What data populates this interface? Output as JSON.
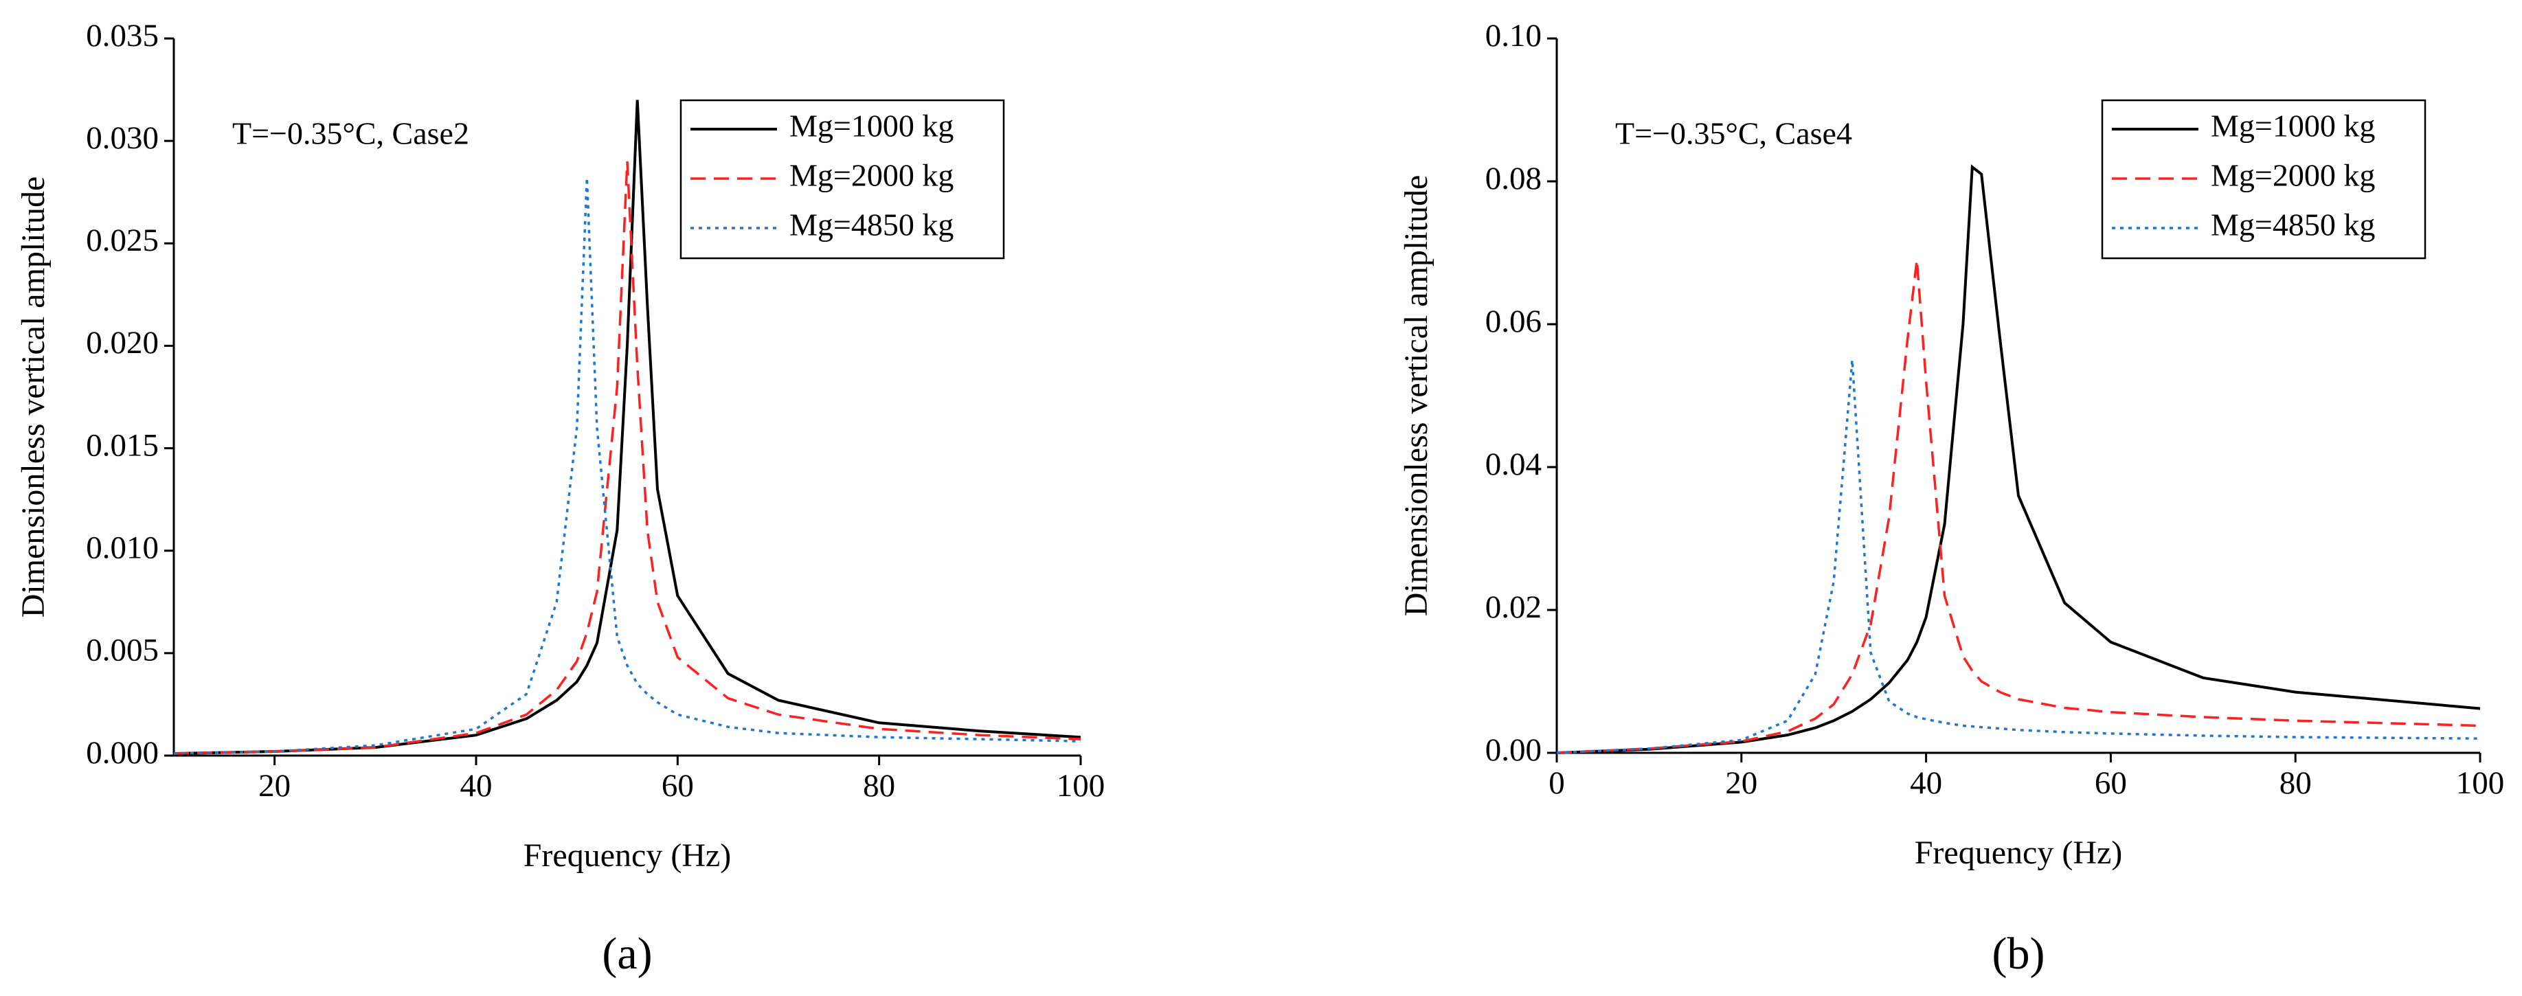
{
  "chart_data": [
    {
      "type": "line",
      "panel_label": "(a)",
      "annotation": "T=−0.35°C, Case2",
      "xlabel": "Frequency (Hz)",
      "ylabel": "Dimensionless vertical amplitude",
      "x": [
        10,
        20,
        30,
        40,
        45,
        48,
        50,
        51,
        52,
        54,
        55,
        56,
        57,
        58,
        60,
        65,
        70,
        80,
        90,
        100
      ],
      "series": [
        {
          "name": "Mg=1000 kg",
          "color": "#000000",
          "dash": "solid",
          "values": [
            0.0001,
            0.0002,
            0.0004,
            0.001,
            0.0018,
            0.0027,
            0.0036,
            0.0044,
            0.0055,
            0.011,
            0.02,
            0.032,
            0.022,
            0.013,
            0.0078,
            0.004,
            0.0027,
            0.0016,
            0.0012,
            0.0009
          ]
        },
        {
          "name": "Mg=2000 kg",
          "color": "#ff2020",
          "dash": "dashed",
          "values": [
            0.0001,
            0.0002,
            0.0004,
            0.0011,
            0.002,
            0.0032,
            0.0046,
            0.006,
            0.008,
            0.018,
            0.029,
            0.019,
            0.011,
            0.0075,
            0.0048,
            0.0028,
            0.002,
            0.0013,
            0.001,
            0.0008
          ]
        },
        {
          "name": "Mg=4850 kg",
          "color": "#1f77d4",
          "dash": "dotted",
          "values": [
            0.0001,
            0.0002,
            0.0005,
            0.0013,
            0.003,
            0.0075,
            0.016,
            0.0282,
            0.016,
            0.0058,
            0.0044,
            0.0035,
            0.003,
            0.0026,
            0.002,
            0.0014,
            0.0011,
            0.0009,
            0.0008,
            0.0007
          ]
        }
      ],
      "xlim": [
        10,
        100
      ],
      "xticks": [
        20,
        40,
        60,
        80,
        100
      ],
      "ylim": [
        0,
        0.035
      ],
      "yticks": [
        {
          "value": 0,
          "label": "0.000"
        },
        0.005,
        {
          "value": 0.01,
          "label": "0.010"
        },
        0.015,
        {
          "value": 0.02,
          "label": "0.020"
        },
        0.025,
        {
          "value": 0.03,
          "label": "0.030"
        },
        0.035
      ],
      "legend": "upper right"
    },
    {
      "type": "line",
      "panel_label": "(b)",
      "annotation": "T=−0.35°C, Case4",
      "xlabel": "Frequency (Hz)",
      "ylabel": "Dimensionless vertical amplitude",
      "x": [
        0,
        10,
        20,
        25,
        28,
        30,
        32,
        34,
        36,
        38,
        39,
        40,
        42,
        44,
        45,
        46,
        48,
        50,
        55,
        60,
        70,
        80,
        100
      ],
      "series": [
        {
          "name": "Mg=1000 kg",
          "color": "#000000",
          "dash": "solid",
          "values": [
            0,
            0.0005,
            0.0015,
            0.0025,
            0.0035,
            0.0045,
            0.0058,
            0.0075,
            0.0098,
            0.013,
            0.0155,
            0.019,
            0.032,
            0.06,
            0.082,
            0.081,
            0.058,
            0.036,
            0.021,
            0.0155,
            0.0105,
            0.0085,
            0.0062
          ]
        },
        {
          "name": "Mg=2000 kg",
          "color": "#ff2020",
          "dash": "dashed",
          "values": [
            0,
            0.0006,
            0.0016,
            0.003,
            0.0048,
            0.0068,
            0.011,
            0.018,
            0.033,
            0.058,
            0.069,
            0.052,
            0.022,
            0.0135,
            0.0115,
            0.01,
            0.0085,
            0.0075,
            0.0063,
            0.0057,
            0.005,
            0.0045,
            0.0038
          ]
        },
        {
          "name": "Mg=4850 kg",
          "color": "#1f77d4",
          "dash": "dotted",
          "values": [
            0,
            0.0006,
            0.0018,
            0.0045,
            0.011,
            0.024,
            0.055,
            0.014,
            0.0072,
            0.0055,
            0.005,
            0.0047,
            0.0042,
            0.0038,
            0.0037,
            0.0036,
            0.0034,
            0.0032,
            0.0029,
            0.0027,
            0.0024,
            0.0022,
            0.002
          ]
        }
      ],
      "xlim": [
        0,
        100
      ],
      "xticks": [
        0,
        20,
        40,
        60,
        80,
        100
      ],
      "ylim": [
        0,
        0.1
      ],
      "yticks": [
        {
          "value": 0,
          "label": "0.00"
        },
        0.02,
        0.04,
        0.06,
        0.08,
        {
          "value": 0.1,
          "label": "0.10"
        }
      ],
      "legend": "upper right"
    }
  ]
}
